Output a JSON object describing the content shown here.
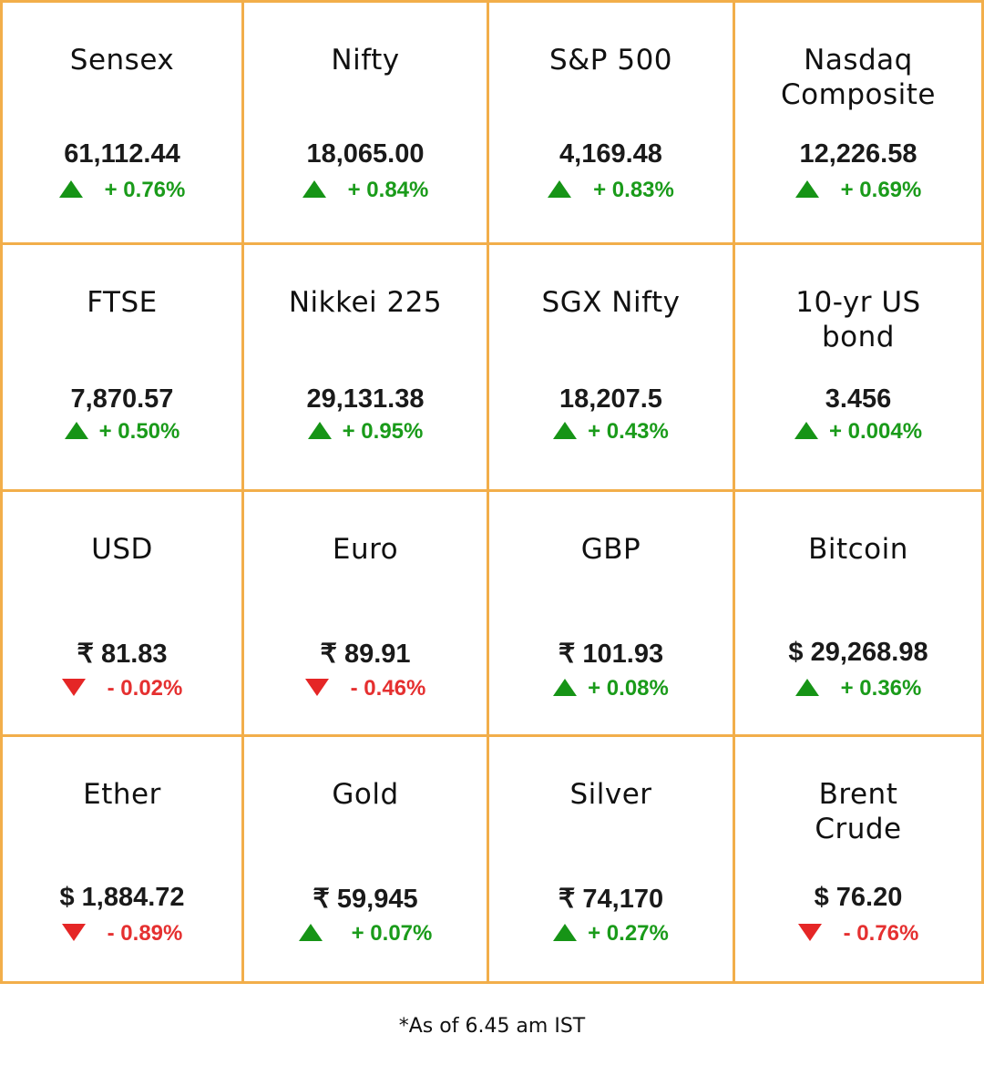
{
  "tiles": [
    {
      "name": "Sensex",
      "value": "61,112.44",
      "change": "+ 0.76%",
      "direction": "up"
    },
    {
      "name": "Nifty",
      "value": "18,065.00",
      "change": "+ 0.84%",
      "direction": "up"
    },
    {
      "name": "S&P 500",
      "value": "4,169.48",
      "change": "+ 0.83%",
      "direction": "up"
    },
    {
      "name": "Nasdaq Composite",
      "value": "12,226.58",
      "change": "+ 0.69%",
      "direction": "up"
    },
    {
      "name": "FTSE",
      "value": "7,870.57",
      "change": "+ 0.50%",
      "direction": "up"
    },
    {
      "name": "Nikkei 225",
      "value": "29,131.38",
      "change": "+ 0.95%",
      "direction": "up"
    },
    {
      "name": "SGX Nifty",
      "value": "18,207.5",
      "change": "+ 0.43%",
      "direction": "up"
    },
    {
      "name": "10-yr US bond",
      "value": "3.456",
      "change": "+ 0.004%",
      "direction": "up"
    },
    {
      "name": "USD",
      "value": "₹ 81.83",
      "change": "- 0.02%",
      "direction": "down"
    },
    {
      "name": "Euro",
      "value": "₹ 89.91",
      "change": "- 0.46%",
      "direction": "down"
    },
    {
      "name": "GBP",
      "value": "₹ 101.93",
      "change": "+ 0.08%",
      "direction": "up"
    },
    {
      "name": "Bitcoin",
      "value": "$ 29,268.98",
      "change": "+ 0.36%",
      "direction": "up"
    },
    {
      "name": "Ether",
      "value": "$ 1,884.72",
      "change": "- 0.89%",
      "direction": "down"
    },
    {
      "name": "Gold",
      "value": "₹ 59,945",
      "change": "+ 0.07%",
      "direction": "up"
    },
    {
      "name": "Silver",
      "value": "₹ 74,170",
      "change": "+ 0.27%",
      "direction": "up"
    },
    {
      "name": "Brent Crude",
      "value": "$ 76.20",
      "change": "- 0.76%",
      "direction": "down"
    }
  ],
  "footnote": "*As of 6.45 am IST",
  "colors": {
    "border": "#f2ae4a",
    "up": "#1a9b1a",
    "down": "#e53030"
  },
  "icons": {
    "up": "triangle-up-icon",
    "down": "triangle-down-icon"
  }
}
